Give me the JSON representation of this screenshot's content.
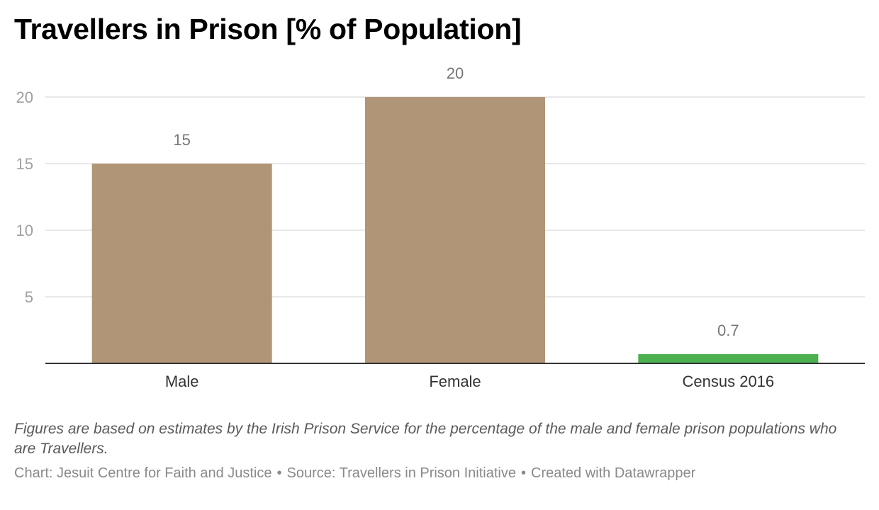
{
  "title": "Travellers in Prison [% of Population]",
  "chart_data": {
    "type": "bar",
    "categories": [
      "Male",
      "Female",
      "Census 2016"
    ],
    "values": [
      15,
      20,
      0.7
    ],
    "value_labels": [
      "15",
      "20",
      "0.7"
    ],
    "bar_colors": [
      "#b09576",
      "#b09576",
      "#4caf50"
    ],
    "ylim": [
      0,
      20
    ],
    "yticks": [
      5,
      10,
      15,
      20
    ],
    "grid": true,
    "xlabel": "",
    "ylabel": ""
  },
  "notes": "Figures are based on estimates by the Irish Prison Service for the percentage of the male and female prison populations who are Travellers.",
  "footer": {
    "chart_credit": "Chart: Jesuit Centre for Faith and Justice",
    "separator": "•",
    "source": "Source: Travellers in Prison Initiative",
    "created_with": "Created with Datawrapper"
  },
  "colors": {
    "gridline": "#e0e0e0",
    "axis": "#333333",
    "tick_text": "#a0a0a0",
    "value_label": "#777777",
    "category_text": "#333333"
  }
}
